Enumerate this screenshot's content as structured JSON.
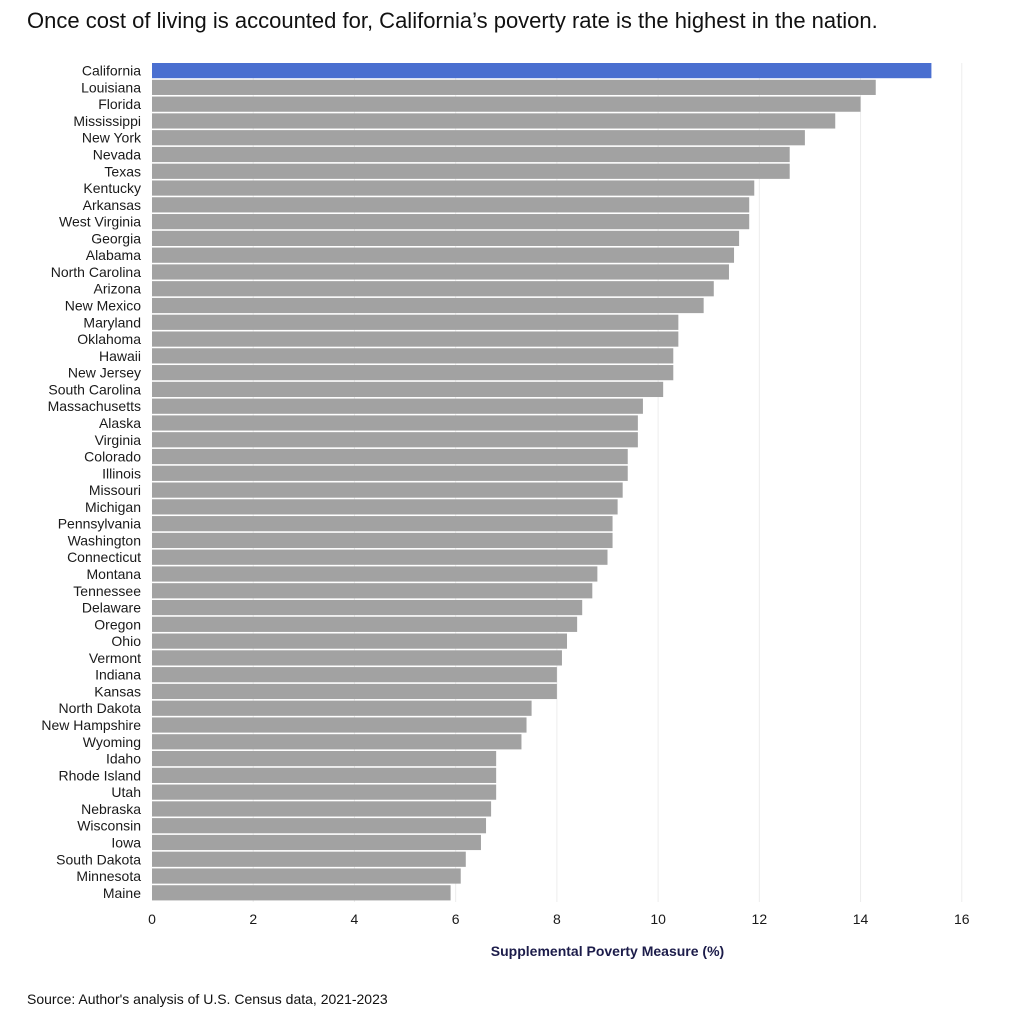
{
  "title": "Once cost of living is accounted for, California’s poverty rate is the highest in the nation.",
  "source": "Source: Author's analysis of U.S. Census data, 2021-2023",
  "colors": {
    "highlight": "#4a6fd0",
    "bar": "#a2a2a2",
    "grid": "#ececec"
  },
  "chart_data": {
    "type": "bar",
    "orientation": "horizontal",
    "xlabel": "Supplemental Poverty Measure (%)",
    "xlim": [
      0,
      18
    ],
    "xticks": [
      0,
      2,
      4,
      6,
      8,
      10,
      12,
      14,
      16,
      18
    ],
    "highlight": "California",
    "grid": true,
    "categories": [
      "California",
      "Louisiana",
      "Florida",
      "Mississippi",
      "New York",
      "Nevada",
      "Texas",
      "Kentucky",
      "Arkansas",
      "West Virginia",
      "Georgia",
      "Alabama",
      "North Carolina",
      "Arizona",
      "New Mexico",
      "Maryland",
      "Oklahoma",
      "Hawaii",
      "New Jersey",
      "South Carolina",
      "Massachusetts",
      "Alaska",
      "Virginia",
      "Colorado",
      "Illinois",
      "Missouri",
      "Michigan",
      "Pennsylvania",
      "Washington",
      "Connecticut",
      "Montana",
      "Tennessee",
      "Delaware",
      "Oregon",
      "Ohio",
      "Vermont",
      "Indiana",
      "Kansas",
      "North Dakota",
      "New Hampshire",
      "Wyoming",
      "Idaho",
      "Rhode Island",
      "Utah",
      "Nebraska",
      "Wisconsin",
      "Iowa",
      "South Dakota",
      "Minnesota",
      "Maine"
    ],
    "values": [
      15.4,
      14.3,
      14.0,
      13.5,
      12.9,
      12.6,
      12.6,
      11.9,
      11.8,
      11.8,
      11.6,
      11.5,
      11.4,
      11.1,
      10.9,
      10.4,
      10.4,
      10.3,
      10.3,
      10.1,
      9.7,
      9.6,
      9.6,
      9.4,
      9.4,
      9.3,
      9.2,
      9.1,
      9.1,
      9.0,
      8.8,
      8.7,
      8.5,
      8.4,
      8.2,
      8.1,
      8.0,
      8.0,
      7.5,
      7.4,
      7.3,
      6.8,
      6.8,
      6.8,
      6.7,
      6.6,
      6.5,
      6.2,
      6.1,
      5.9
    ]
  }
}
